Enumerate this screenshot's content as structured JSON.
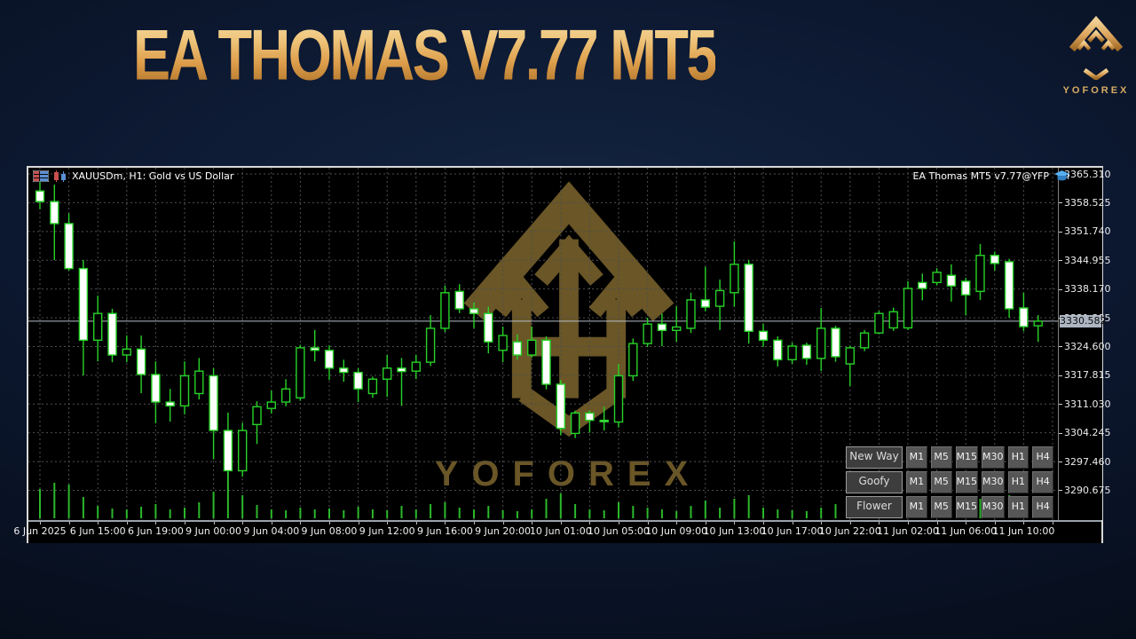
{
  "banner": {
    "title": "EA THOMAS V7.77 MT5",
    "brand_name": "YOFOREX",
    "title_gold": "#e9b96e",
    "brand_gold": "#d7ab62"
  },
  "chart_header": {
    "symbol_title": "XAUUSDm, H1:  Gold vs US Dollar",
    "ea_label": "EA Thomas MT5 v7.77@YFP"
  },
  "watermark": {
    "text": "YOFOREX",
    "color": "#6a5626"
  },
  "panel": {
    "rows": [
      {
        "label": "New Way"
      },
      {
        "label": "Goofy"
      },
      {
        "label": "Flower"
      }
    ],
    "timeframes": [
      "M1",
      "M5",
      "M15",
      "M30",
      "H1",
      "H4"
    ]
  },
  "chart_data": {
    "type": "candlestick",
    "symbol": "XAUUSDm",
    "timeframe": "H1",
    "current_price": 3330.582,
    "current_price_label": "3330.582",
    "ylim": [
      3283.66,
      3366.78
    ],
    "grid": true,
    "colors": {
      "background": "#000000",
      "candle_line": "#27d227",
      "bull_fill": "#000000",
      "bear_fill": "#ffffff",
      "volume": "#2bb82b",
      "grid": "#4f4f4f",
      "bid_line": "#b7bfc9"
    },
    "price_ticks": [
      {
        "label": "3365.310",
        "value": 3365.31
      },
      {
        "label": "3358.525",
        "value": 3358.525
      },
      {
        "label": "3351.740",
        "value": 3351.74
      },
      {
        "label": "3344.955",
        "value": 3344.955
      },
      {
        "label": "3338.170",
        "value": 3338.17
      },
      {
        "label": "3331.385",
        "value": 3331.385
      },
      {
        "label": "3324.600",
        "value": 3324.6
      },
      {
        "label": "3317.815",
        "value": 3317.815
      },
      {
        "label": "3311.030",
        "value": 3311.03
      },
      {
        "label": "3304.245",
        "value": 3304.245
      },
      {
        "label": "3297.460",
        "value": 3297.46
      },
      {
        "label": "3290.675",
        "value": 3290.675
      }
    ],
    "time_labels": [
      "6 Jun 2025",
      "6 Jun 15:00",
      "6 Jun 19:00",
      "9 Jun 00:00",
      "9 Jun 04:00",
      "9 Jun 08:00",
      "9 Jun 12:00",
      "9 Jun 16:00",
      "9 Jun 20:00",
      "10 Jun 01:00",
      "10 Jun 05:00",
      "10 Jun 09:00",
      "10 Jun 13:00",
      "10 Jun 17:00",
      "10 Jun 22:00",
      "11 Jun 02:00",
      "11 Jun 06:00",
      "11 Jun 10:00"
    ],
    "candles_ohlc": [
      [
        3361.3,
        3363.4,
        3357.0,
        3358.8
      ],
      [
        3358.8,
        3362.8,
        3345.0,
        3353.6
      ],
      [
        3353.6,
        3356.0,
        3342.5,
        3343.0
      ],
      [
        3343.0,
        3345.0,
        3317.8,
        3326.1
      ],
      [
        3326.1,
        3336.6,
        3321.1,
        3332.4
      ],
      [
        3332.4,
        3333.5,
        3320.9,
        3322.6
      ],
      [
        3322.6,
        3327.2,
        3320.9,
        3324.0
      ],
      [
        3324.0,
        3327.2,
        3313.6,
        3318.0
      ],
      [
        3318.0,
        3321.1,
        3306.5,
        3311.5
      ],
      [
        3311.5,
        3314.6,
        3306.9,
        3310.6
      ],
      [
        3310.6,
        3321.1,
        3308.6,
        3317.7
      ],
      [
        3313.5,
        3321.9,
        3312.1,
        3318.8
      ],
      [
        3317.7,
        3319.5,
        3298.0,
        3304.8
      ],
      [
        3304.8,
        3309.0,
        3294.6,
        3295.3
      ],
      [
        3295.3,
        3306.6,
        3293.9,
        3304.8
      ],
      [
        3306.2,
        3311.7,
        3301.6,
        3310.4
      ],
      [
        3310.0,
        3314.2,
        3308.8,
        3311.5
      ],
      [
        3311.5,
        3316.9,
        3310.5,
        3314.6
      ],
      [
        3312.5,
        3325.0,
        3311.8,
        3324.3
      ],
      [
        3324.3,
        3328.5,
        3321.1,
        3323.7
      ],
      [
        3323.7,
        3324.9,
        3316.7,
        3319.5
      ],
      [
        3319.5,
        3321.5,
        3316.3,
        3318.5
      ],
      [
        3318.5,
        3319.5,
        3311.5,
        3314.6
      ],
      [
        3313.5,
        3317.5,
        3312.5,
        3316.9
      ],
      [
        3316.9,
        3322.6,
        3312.7,
        3319.5
      ],
      [
        3319.5,
        3321.9,
        3310.6,
        3318.7
      ],
      [
        3318.8,
        3322.6,
        3316.9,
        3320.9
      ],
      [
        3320.9,
        3332.0,
        3320.0,
        3328.9
      ],
      [
        3328.9,
        3339.0,
        3328.0,
        3337.3
      ],
      [
        3337.6,
        3339.3,
        3332.5,
        3333.5
      ],
      [
        3333.5,
        3335.0,
        3328.9,
        3332.4
      ],
      [
        3332.4,
        3334.0,
        3323.0,
        3325.7
      ],
      [
        3323.7,
        3329.3,
        3320.9,
        3327.2
      ],
      [
        3325.7,
        3327.5,
        3321.5,
        3322.6
      ],
      [
        3322.6,
        3329.3,
        3322.0,
        3326.1
      ],
      [
        3326.1,
        3327.0,
        3314.5,
        3315.7
      ],
      [
        3315.7,
        3316.7,
        3303.7,
        3305.3
      ],
      [
        3304.1,
        3309.5,
        3303.0,
        3308.9
      ],
      [
        3308.9,
        3309.5,
        3304.3,
        3307.2
      ],
      [
        3307.2,
        3310.4,
        3304.8,
        3307.0
      ],
      [
        3306.8,
        3320.5,
        3305.5,
        3317.7
      ],
      [
        3317.7,
        3326.5,
        3316.5,
        3325.3
      ],
      [
        3325.3,
        3331.4,
        3324.5,
        3329.9
      ],
      [
        3329.9,
        3332.4,
        3324.7,
        3328.4
      ],
      [
        3328.4,
        3334.1,
        3325.7,
        3329.2
      ],
      [
        3328.9,
        3337.3,
        3327.8,
        3335.6
      ],
      [
        3335.6,
        3343.4,
        3332.9,
        3333.9
      ],
      [
        3334.1,
        3340.4,
        3328.5,
        3337.8
      ],
      [
        3337.3,
        3349.4,
        3334.0,
        3344.0
      ],
      [
        3344.0,
        3345.0,
        3325.3,
        3328.2
      ],
      [
        3328.2,
        3330.0,
        3324.5,
        3326.1
      ],
      [
        3326.1,
        3327.0,
        3319.9,
        3321.5
      ],
      [
        3321.5,
        3325.5,
        3320.5,
        3324.7
      ],
      [
        3324.9,
        3325.5,
        3320.3,
        3321.8
      ],
      [
        3321.8,
        3333.7,
        3318.8,
        3328.9
      ],
      [
        3328.9,
        3329.5,
        3321.0,
        3322.2
      ],
      [
        3320.5,
        3324.8,
        3315.3,
        3324.3
      ],
      [
        3324.3,
        3328.5,
        3323.5,
        3327.8
      ],
      [
        3327.8,
        3333.0,
        3327.5,
        3332.4
      ],
      [
        3329.0,
        3333.8,
        3328.3,
        3332.8
      ],
      [
        3329.0,
        3340.0,
        3328.5,
        3338.3
      ],
      [
        3339.7,
        3341.8,
        3335.5,
        3338.3
      ],
      [
        3339.7,
        3343.1,
        3339.0,
        3342.1
      ],
      [
        3341.4,
        3344.0,
        3335.2,
        3338.9
      ],
      [
        3340.0,
        3340.8,
        3332.0,
        3336.8
      ],
      [
        3337.6,
        3348.8,
        3335.6,
        3346.1
      ],
      [
        3346.1,
        3347.0,
        3342.5,
        3344.2
      ],
      [
        3344.6,
        3345.3,
        3331.4,
        3333.5
      ],
      [
        3333.7,
        3337.3,
        3328.2,
        3329.3
      ],
      [
        3329.5,
        3332.0,
        3325.7,
        3330.582
      ]
    ],
    "volumes": [
      33,
      40,
      38,
      24,
      14,
      11,
      10,
      13,
      16,
      10,
      12,
      18,
      30,
      52,
      26,
      15,
      10,
      9,
      12,
      10,
      11,
      9,
      13,
      10,
      9,
      14,
      10,
      16,
      18,
      12,
      10,
      14,
      9,
      8,
      10,
      22,
      28,
      16,
      10,
      9,
      18,
      14,
      12,
      10,
      8,
      14,
      20,
      12,
      22,
      26,
      12,
      10,
      9,
      8,
      12,
      16,
      10,
      9,
      11,
      10,
      18,
      16,
      8,
      9,
      14,
      22,
      10,
      26,
      18,
      12
    ]
  }
}
